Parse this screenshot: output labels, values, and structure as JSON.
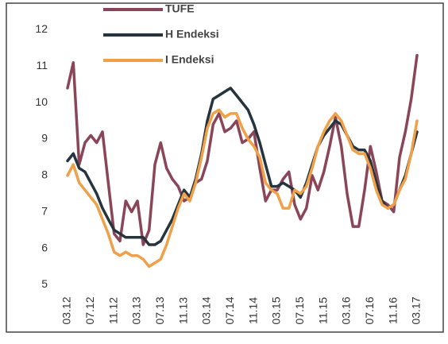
{
  "chart_data": {
    "type": "line",
    "categories": [
      "03.12",
      null,
      null,
      null,
      "07.12",
      null,
      null,
      null,
      "11.12",
      null,
      null,
      null,
      "03.13",
      null,
      null,
      null,
      "07.13",
      null,
      null,
      null,
      "11.13",
      null,
      null,
      null,
      "03.14",
      null,
      null,
      null,
      "07.14",
      null,
      null,
      null,
      "11.14",
      null,
      null,
      null,
      "03.15",
      null,
      null,
      null,
      "07.15",
      null,
      null,
      null,
      "11.15",
      null,
      null,
      null,
      "03.16",
      null,
      null,
      null,
      "07.16",
      null,
      null,
      null,
      "11.16",
      null,
      null,
      null,
      "03.17"
    ],
    "series": [
      {
        "name": "TUFE",
        "color": "#8a4658",
        "values": [
          10.4,
          11.1,
          8.3,
          8.9,
          9.1,
          8.9,
          9.2,
          7.8,
          6.4,
          6.2,
          7.3,
          7.0,
          7.3,
          6.1,
          6.5,
          8.3,
          8.9,
          8.2,
          7.9,
          7.7,
          7.3,
          7.4,
          7.8,
          7.9,
          8.4,
          9.4,
          9.7,
          9.2,
          9.3,
          9.5,
          8.9,
          9.0,
          9.2,
          8.2,
          7.3,
          7.6,
          7.6,
          7.9,
          8.1,
          7.2,
          6.8,
          7.1,
          8.0,
          7.6,
          8.1,
          8.8,
          9.6,
          8.8,
          7.5,
          6.6,
          6.6,
          7.6,
          8.8,
          8.1,
          7.3,
          7.2,
          7.0,
          8.5,
          9.2,
          10.1,
          11.3
        ]
      },
      {
        "name": "H Endeksi",
        "color": "#26343f",
        "values": [
          8.4,
          8.6,
          8.2,
          8.1,
          7.8,
          7.5,
          7.1,
          6.8,
          6.5,
          6.4,
          6.3,
          6.3,
          6.3,
          6.3,
          6.1,
          6.1,
          6.2,
          6.5,
          6.8,
          7.2,
          7.6,
          7.4,
          7.9,
          8.6,
          9.5,
          10.1,
          10.2,
          10.3,
          10.4,
          10.2,
          10.0,
          9.8,
          9.4,
          8.9,
          8.3,
          7.7,
          7.7,
          7.8,
          7.7,
          7.6,
          7.4,
          7.8,
          8.3,
          8.8,
          9.1,
          9.3,
          9.5,
          9.4,
          9.1,
          8.8,
          8.7,
          8.7,
          8.4,
          7.8,
          7.3,
          7.1,
          7.2,
          7.6,
          8.0,
          8.6,
          9.2
        ]
      },
      {
        "name": "I Endeksi",
        "color": "#f0a049",
        "values": [
          8.0,
          8.3,
          7.8,
          7.6,
          7.4,
          7.2,
          6.8,
          6.4,
          5.9,
          5.8,
          5.9,
          5.8,
          5.8,
          5.7,
          5.5,
          5.6,
          5.7,
          6.1,
          6.6,
          7.1,
          7.5,
          7.3,
          7.8,
          8.5,
          9.3,
          9.7,
          9.8,
          9.6,
          9.7,
          9.7,
          9.3,
          9.0,
          8.8,
          8.5,
          7.8,
          7.6,
          7.5,
          7.1,
          7.1,
          7.6,
          7.5,
          7.7,
          8.2,
          8.8,
          9.2,
          9.5,
          9.7,
          9.5,
          9.1,
          8.7,
          8.6,
          8.6,
          8.2,
          7.6,
          7.2,
          7.1,
          7.2,
          7.6,
          7.9,
          8.6,
          9.5
        ]
      }
    ],
    "ylim": [
      4.9,
      12.6
    ],
    "yticks": [
      5,
      6,
      7,
      8,
      9,
      10,
      11,
      12
    ],
    "grid": false
  }
}
